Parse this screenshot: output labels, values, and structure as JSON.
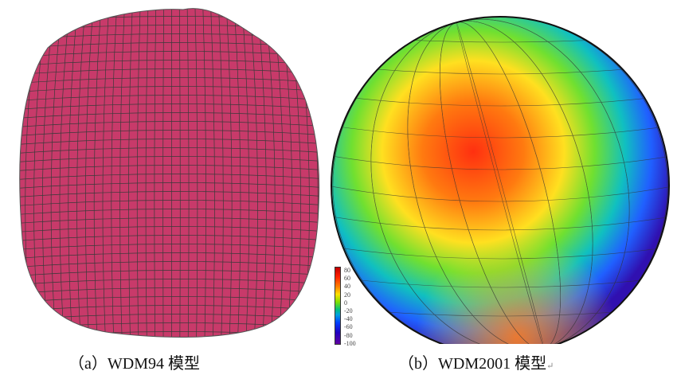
{
  "figure": {
    "panel_a": {
      "caption": "（a）WDM94 模型",
      "surface_color": "#c83a6a"
    },
    "panel_b": {
      "caption": "（b）WDM2001 模型",
      "return_mark": "↵"
    },
    "colorbar": {
      "tick_labels": [
        "80",
        "60",
        "40",
        "20",
        "0",
        "-20",
        "-40",
        "-60",
        "-80",
        "-100"
      ],
      "range": [
        -100,
        80
      ],
      "colormap": [
        "#c00000",
        "#ff8000",
        "#ffe000",
        "#00c080",
        "#0040ff",
        "#6000a0"
      ]
    }
  }
}
